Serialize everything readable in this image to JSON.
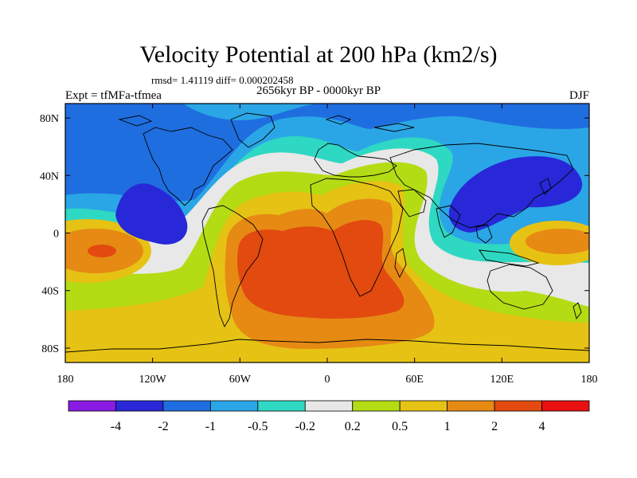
{
  "title": "Velocity Potential at 200 hPa (km2/s)",
  "stats_line": "rmsd= 1.41119 diff= 0.000202458",
  "experiment": "Expt = tfMFa-tfmea",
  "period": "2656kyr BP - 0000kyr BP",
  "season": "DJF",
  "y_ticks": [
    {
      "label": "80N",
      "lat": 80
    },
    {
      "label": "40N",
      "lat": 40
    },
    {
      "label": "0",
      "lat": 0
    },
    {
      "label": "40S",
      "lat": -40
    },
    {
      "label": "80S",
      "lat": -80
    }
  ],
  "x_ticks": [
    {
      "label": "180",
      "lon": -180
    },
    {
      "label": "120W",
      "lon": -120
    },
    {
      "label": "60W",
      "lon": -60
    },
    {
      "label": "0",
      "lon": 0
    },
    {
      "label": "60E",
      "lon": 60
    },
    {
      "label": "120E",
      "lon": 120
    },
    {
      "label": "180",
      "lon": 180
    }
  ],
  "colorbar": {
    "colors": [
      "#8a1be3",
      "#2828d8",
      "#1f6ee0",
      "#2aa6e6",
      "#2fd8c2",
      "#e8e8e8",
      "#b4dc14",
      "#e6c214",
      "#e68a14",
      "#e24a10",
      "#e81010"
    ],
    "labels": [
      "-4",
      "-2",
      "-1",
      "-0.5",
      "-0.2",
      "0.2",
      "0.5",
      "1",
      "2",
      "4"
    ]
  },
  "legend_colors": {
    "c_m2": "#2828d8",
    "c_m1": "#1f6ee0",
    "c_m05": "#2aa6e6",
    "c_m02": "#2fd8c2",
    "c_0": "#e8e8e8",
    "c_02": "#b4dc14",
    "c_05": "#e6c214",
    "c_1": "#e68a14",
    "c_2": "#e24a10"
  }
}
